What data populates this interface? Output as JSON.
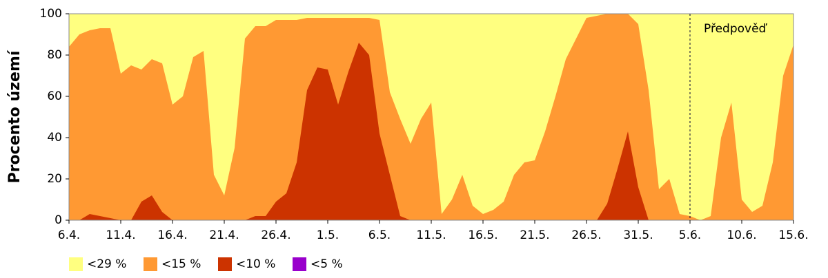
{
  "chart_data": {
    "type": "area",
    "y_label": "Procento území",
    "categories": [
      "6.4.",
      null,
      null,
      null,
      null,
      "11.4.",
      null,
      null,
      null,
      null,
      "16.4.",
      null,
      null,
      null,
      null,
      "21.4.",
      null,
      null,
      null,
      null,
      "26.4.",
      null,
      null,
      null,
      null,
      "1.5.",
      null,
      null,
      null,
      null,
      "6.5.",
      null,
      null,
      null,
      null,
      "11.5.",
      null,
      null,
      null,
      null,
      "16.5.",
      null,
      null,
      null,
      null,
      "21.5.",
      null,
      null,
      null,
      null,
      "26.5.",
      null,
      null,
      null,
      null,
      "31.5.",
      null,
      null,
      null,
      null,
      "5.6.",
      null,
      null,
      null,
      null,
      "10.6.",
      null,
      null,
      null,
      null,
      "15.6."
    ],
    "series": [
      {
        "name": "<29 %",
        "color": "#ffff80",
        "values": [
          100,
          100,
          100,
          100,
          100,
          100,
          100,
          100,
          100,
          100,
          100,
          100,
          100,
          100,
          100,
          100,
          100,
          100,
          100,
          100,
          100,
          100,
          100,
          100,
          100,
          100,
          100,
          100,
          100,
          100,
          100,
          100,
          100,
          100,
          100,
          100,
          100,
          100,
          100,
          100,
          100,
          100,
          100,
          100,
          100,
          100,
          100,
          100,
          100,
          100,
          100,
          100,
          100,
          100,
          100,
          100,
          100,
          100,
          100,
          100,
          100,
          100,
          100,
          100,
          100,
          100,
          100,
          100,
          100,
          100,
          100
        ]
      },
      {
        "name": "<15 %",
        "color": "#ff9933",
        "values": [
          84,
          90,
          92,
          93,
          93,
          71,
          75,
          73,
          78,
          76,
          56,
          60,
          79,
          82,
          22,
          12,
          35,
          88,
          94,
          94,
          97,
          97,
          97,
          98,
          98,
          98,
          98,
          98,
          98,
          98,
          97,
          62,
          49,
          37,
          49,
          57,
          3,
          10,
          22,
          7,
          3,
          5,
          9,
          22,
          28,
          29,
          43,
          60,
          78,
          88,
          98,
          99,
          100,
          100,
          100,
          95,
          63,
          15,
          20,
          3,
          2,
          0,
          2,
          40,
          57,
          10,
          4,
          7,
          28,
          70,
          85
        ]
      },
      {
        "name": "<10 %",
        "color": "#cc3300",
        "values": [
          0,
          0,
          3,
          2,
          1,
          0,
          0,
          9,
          12,
          4,
          0,
          0,
          0,
          0,
          0,
          0,
          0,
          0,
          2,
          2,
          9,
          13,
          28,
          63,
          74,
          73,
          56,
          72,
          86,
          80,
          42,
          22,
          2,
          0,
          0,
          0,
          0,
          0,
          0,
          0,
          0,
          0,
          0,
          0,
          0,
          0,
          0,
          0,
          0,
          0,
          0,
          0,
          8,
          25,
          43,
          16,
          0,
          0,
          0,
          0,
          0,
          0,
          0,
          0,
          0,
          0,
          0,
          0,
          0,
          0,
          0
        ]
      },
      {
        "name": "<5 %",
        "color": "#9900cc",
        "values": [
          0,
          0,
          0,
          0,
          0,
          0,
          0,
          0,
          0,
          0,
          0,
          0,
          0,
          0,
          0,
          0,
          0,
          0,
          0,
          0,
          0,
          0,
          0,
          0,
          0,
          0,
          0,
          0,
          0,
          0,
          0,
          0,
          0,
          0,
          0,
          0,
          0,
          0,
          0,
          0,
          0,
          0,
          0,
          0,
          0,
          0,
          0,
          0,
          0,
          0,
          0,
          0,
          0,
          0,
          0,
          0,
          0,
          0,
          0,
          0,
          0,
          0,
          0,
          0,
          0,
          0,
          0,
          0,
          0,
          0,
          0
        ]
      }
    ],
    "annotation": {
      "text": "Předpověď",
      "at": "5.6."
    },
    "ylim": [
      0,
      100
    ],
    "yticks": [
      0,
      20,
      40,
      60,
      80,
      100
    ]
  }
}
